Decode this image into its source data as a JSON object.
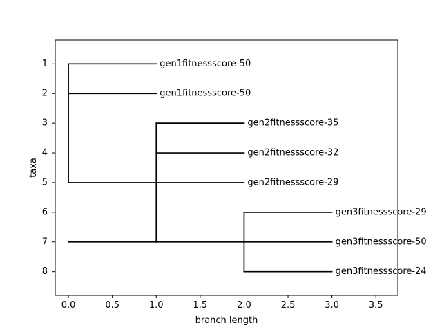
{
  "chart_data": {
    "type": "tree",
    "title": "",
    "xlabel": "branch length",
    "ylabel": "taxa",
    "xlim": [
      -0.15,
      3.75
    ],
    "ylim": [
      8.8,
      0.2
    ],
    "x_ticks": [
      0.0,
      0.5,
      1.0,
      1.5,
      2.0,
      2.5,
      3.0,
      3.5
    ],
    "x_tick_labels": [
      "0.0",
      "0.5",
      "1.0",
      "1.5",
      "2.0",
      "2.5",
      "3.0",
      "3.5"
    ],
    "y_ticks": [
      1,
      2,
      3,
      4,
      5,
      6,
      7,
      8
    ],
    "y_tick_labels": [
      "1",
      "2",
      "3",
      "4",
      "5",
      "6",
      "7",
      "8"
    ],
    "grid": false,
    "line_color": "#000000",
    "branches": [
      {
        "x0": 0,
        "x1": 1,
        "y": 1
      },
      {
        "x0": 0,
        "x1": 1,
        "y": 2
      },
      {
        "x0": 0,
        "x1": 2,
        "y": 5
      },
      {
        "x0": 0,
        "x1": 1,
        "y": 7
      },
      {
        "x0": 1,
        "x1": 2,
        "y": 3
      },
      {
        "x0": 1,
        "x1": 2,
        "y": 4
      },
      {
        "x0": 1,
        "x1": 2,
        "y": 7
      },
      {
        "x0": 2,
        "x1": 3,
        "y": 6
      },
      {
        "x0": 2,
        "x1": 3,
        "y": 7
      },
      {
        "x0": 2,
        "x1": 3,
        "y": 8
      }
    ],
    "connectors": [
      {
        "x": 0,
        "y0": 1,
        "y1": 5
      },
      {
        "x": 1,
        "y0": 3,
        "y1": 7
      },
      {
        "x": 2,
        "y0": 6,
        "y1": 8
      }
    ],
    "leaves": [
      {
        "label": "gen1fitnessscore-50",
        "x": 1,
        "y": 1
      },
      {
        "label": "gen1fitnessscore-50",
        "x": 1,
        "y": 2
      },
      {
        "label": "gen2fitnessscore-35",
        "x": 2,
        "y": 3
      },
      {
        "label": "gen2fitnessscore-32",
        "x": 2,
        "y": 4
      },
      {
        "label": "gen2fitnessscore-29",
        "x": 2,
        "y": 5
      },
      {
        "label": "gen3fitnessscore-29",
        "x": 3,
        "y": 6
      },
      {
        "label": "gen3fitnessscore-50",
        "x": 3,
        "y": 7
      },
      {
        "label": "gen3fitnessscore-24",
        "x": 3,
        "y": 8
      }
    ]
  }
}
